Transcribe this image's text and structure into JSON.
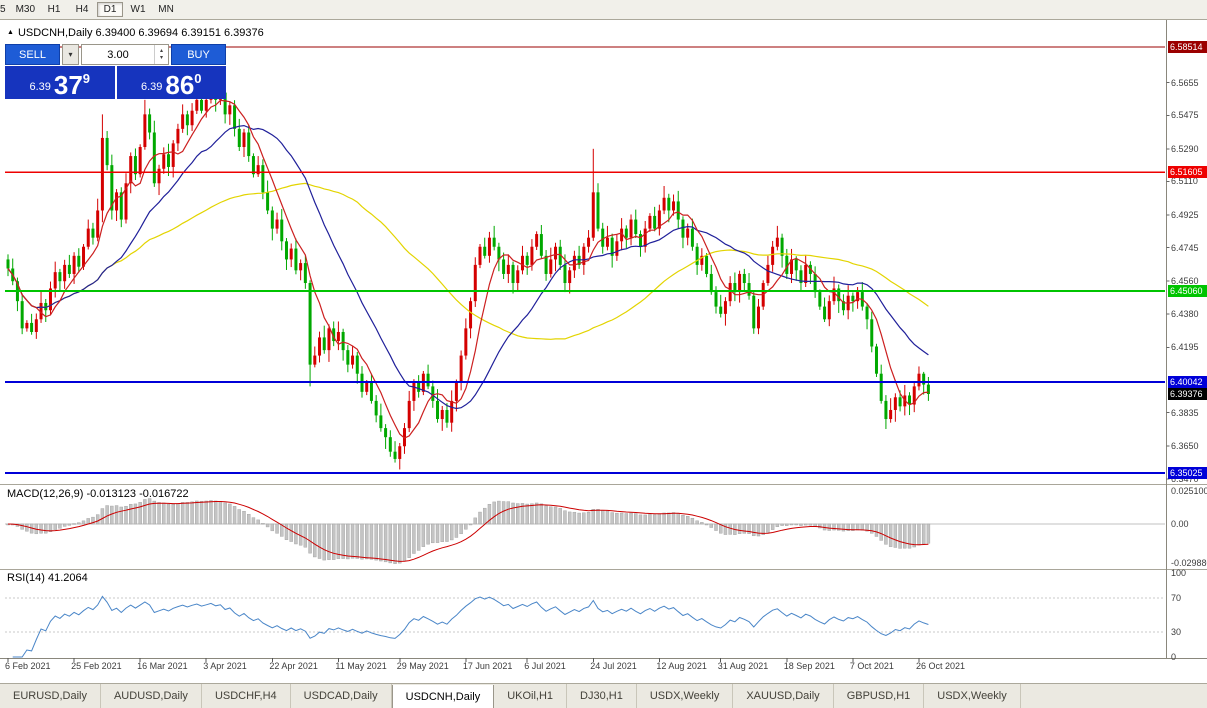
{
  "toolbar": {
    "items": [
      "5",
      "M30",
      "H1",
      "H4",
      "D1",
      "W1",
      "MN"
    ],
    "active_index": 4
  },
  "icons": {
    "collapse": "▲",
    "dropdown": "▾",
    "spin_up": "▴",
    "spin_down": "▾"
  },
  "trade_panel": {
    "sell_label": "SELL",
    "buy_label": "BUY",
    "volume": "3.00",
    "sell_price": {
      "prefix": "6.39",
      "big": "37",
      "sup": "9"
    },
    "buy_price": {
      "prefix": "6.39",
      "big": "86",
      "sup": "0"
    }
  },
  "tabs": {
    "items": [
      "EURUSD,Daily",
      "AUDUSD,Daily",
      "USDCHF,H4",
      "USDCAD,Daily",
      "USDCNH,Daily",
      "UKOil,H1",
      "DJ30,H1",
      "USDX,Weekly",
      "XAUUSD,Daily",
      "GBPUSD,H1",
      "USDX,Weekly"
    ],
    "active_index": 4
  },
  "chart_data": {
    "type": "candlestick",
    "symbol": "USDCNH",
    "timeframe": "Daily",
    "ohlc_title": "USDCNH,Daily 6.39400 6.39694 6.39151 6.39376",
    "open": 6.394,
    "high": 6.39694,
    "low": 6.39151,
    "close": 6.39376,
    "up_color": "#D40000",
    "down_color": "#00A800",
    "first_open": 6.468,
    "closes": [
      6.463,
      6.456,
      6.445,
      6.43,
      6.433,
      6.428,
      6.435,
      6.444,
      6.44,
      6.452,
      6.461,
      6.456,
      6.465,
      6.46,
      6.47,
      6.464,
      6.475,
      6.485,
      6.48,
      6.495,
      6.535,
      6.52,
      6.495,
      6.505,
      6.49,
      6.51,
      6.525,
      6.515,
      6.53,
      6.548,
      6.538,
      6.51,
      6.518,
      6.526,
      6.519,
      6.532,
      6.54,
      6.548,
      6.542,
      6.55,
      6.556,
      6.55,
      6.556,
      6.562,
      6.556,
      6.56,
      6.548,
      6.553,
      6.54,
      6.53,
      6.538,
      6.525,
      6.515,
      6.52,
      6.505,
      6.495,
      6.485,
      6.49,
      6.478,
      6.468,
      6.474,
      6.462,
      6.466,
      6.455,
      6.41,
      6.415,
      6.425,
      6.418,
      6.43,
      6.423,
      6.428,
      6.418,
      6.41,
      6.415,
      6.405,
      6.395,
      6.4,
      6.39,
      6.382,
      6.375,
      6.37,
      6.362,
      6.358,
      6.365,
      6.375,
      6.39,
      6.4,
      6.395,
      6.405,
      6.398,
      6.39,
      6.38,
      6.385,
      6.378,
      6.39,
      6.4,
      6.415,
      6.43,
      6.445,
      6.465,
      6.475,
      6.47,
      6.48,
      6.475,
      6.468,
      6.46,
      6.465,
      6.455,
      6.462,
      6.47,
      6.465,
      6.475,
      6.482,
      6.47,
      6.46,
      6.468,
      6.475,
      6.465,
      6.455,
      6.462,
      6.47,
      6.465,
      6.475,
      6.48,
      6.505,
      6.485,
      6.475,
      6.48,
      6.47,
      6.478,
      6.485,
      6.48,
      6.49,
      6.482,
      6.475,
      6.485,
      6.492,
      6.485,
      6.495,
      6.502,
      6.495,
      6.5,
      6.49,
      6.48,
      6.485,
      6.475,
      6.465,
      6.47,
      6.46,
      6.45,
      6.442,
      6.438,
      6.445,
      6.455,
      6.45,
      6.46,
      6.455,
      6.448,
      6.43,
      6.442,
      6.455,
      6.465,
      6.475,
      6.48,
      6.47,
      6.46,
      6.468,
      6.462,
      6.455,
      6.465,
      6.46,
      6.45,
      6.442,
      6.435,
      6.445,
      6.452,
      6.445,
      6.44,
      6.448,
      6.445,
      6.45,
      6.442,
      6.435,
      6.42,
      6.405,
      6.39,
      6.38,
      6.385,
      6.392,
      6.387,
      6.393,
      6.388,
      6.398,
      6.405,
      6.399,
      6.3938
    ],
    "wick_pattern": [
      0.0028,
      0.0055,
      0.002,
      0.0042,
      0.0015,
      0.005,
      0.0032,
      0.0065,
      0.0022,
      0.0038,
      0.0058,
      0.0018
    ],
    "overrides": {
      "20": {
        "h": 6.548
      },
      "29": {
        "h": 6.556
      },
      "43": {
        "h": 6.566
      },
      "64": {
        "l": 6.398
      },
      "82": {
        "l": 6.356
      },
      "124": {
        "h": 6.529
      },
      "158": {
        "l": 6.427
      },
      "186": {
        "l": 6.3745
      },
      "193": {
        "h": 6.409
      },
      "194": {
        "h": 6.406
      },
      "195": {
        "l": 6.39
      }
    },
    "ma": [
      {
        "period": 55,
        "color": "#E3D400",
        "name": "ma-slow-yellow"
      },
      {
        "period": 22,
        "color": "#20209A",
        "name": "ma-mid-navy"
      },
      {
        "period": 7,
        "color": "#CC2020",
        "name": "ma-fast-red"
      }
    ],
    "levels": [
      {
        "text": "6.58514",
        "value": 6.58514,
        "color": "#9B0000",
        "line": true,
        "width": 1.2
      },
      {
        "text": "6.51605",
        "value": 6.51605,
        "color": "#EE0000",
        "line": true,
        "width": 1.6
      },
      {
        "text": "6.45060",
        "value": 6.4506,
        "color": "#00C400",
        "line": true,
        "width": 2
      },
      {
        "text": "6.40042",
        "value": 6.40042,
        "color": "#0000D8",
        "line": true,
        "width": 2
      },
      {
        "text": "6.39376",
        "value": 6.39376,
        "color": "#000000",
        "line": false,
        "width": 0
      },
      {
        "text": "6.35025",
        "value": 6.35025,
        "color": "#0000D8",
        "line": true,
        "width": 2
      }
    ],
    "y_ticks": [
      "6.5655",
      "6.5475",
      "6.5290",
      "6.5110",
      "6.4925",
      "6.4745",
      "6.4560",
      "6.4380",
      "6.4195",
      "6.3835",
      "6.3650",
      "6.3470"
    ],
    "x_labels": [
      {
        "label": "6 Feb 2021",
        "i": 0
      },
      {
        "label": "25 Feb 2021",
        "i": 14
      },
      {
        "label": "16 Mar 2021",
        "i": 28
      },
      {
        "label": "3 Apr 2021",
        "i": 42
      },
      {
        "label": "22 Apr 2021",
        "i": 56
      },
      {
        "label": "11 May 2021",
        "i": 70
      },
      {
        "label": "29 May 2021",
        "i": 83
      },
      {
        "label": "17 Jun 2021",
        "i": 97
      },
      {
        "label": "6 Jul 2021",
        "i": 110
      },
      {
        "label": "24 Jul 2021",
        "i": 124
      },
      {
        "label": "12 Aug 2021",
        "i": 138
      },
      {
        "label": "31 Aug 2021",
        "i": 151
      },
      {
        "label": "18 Sep 2021",
        "i": 165
      },
      {
        "label": "7 Oct 2021",
        "i": 179
      },
      {
        "label": "26 Oct 2021",
        "i": 193
      }
    ],
    "indicators": {
      "macd": {
        "label": "MACD(12,26,9) -0.013123 -0.016722",
        "fast": 12,
        "slow": 26,
        "signal": 9,
        "main_value": -0.013123,
        "signal_value": -0.016722,
        "ticks": [
          {
            "t": "0.025100",
            "v": 0.0251
          },
          {
            "t": "0.00",
            "v": 0
          },
          {
            "t": "-0.029880",
            "v": -0.02988
          }
        ]
      },
      "rsi": {
        "label": "RSI(14) 41.2064",
        "period": 14,
        "value": 41.2064,
        "levels": [
          70,
          30
        ],
        "ticks": [
          {
            "t": "100",
            "v": 100
          },
          {
            "t": "70",
            "v": 70
          },
          {
            "t": "30",
            "v": 30
          },
          {
            "t": "0",
            "v": 0
          }
        ]
      }
    }
  }
}
